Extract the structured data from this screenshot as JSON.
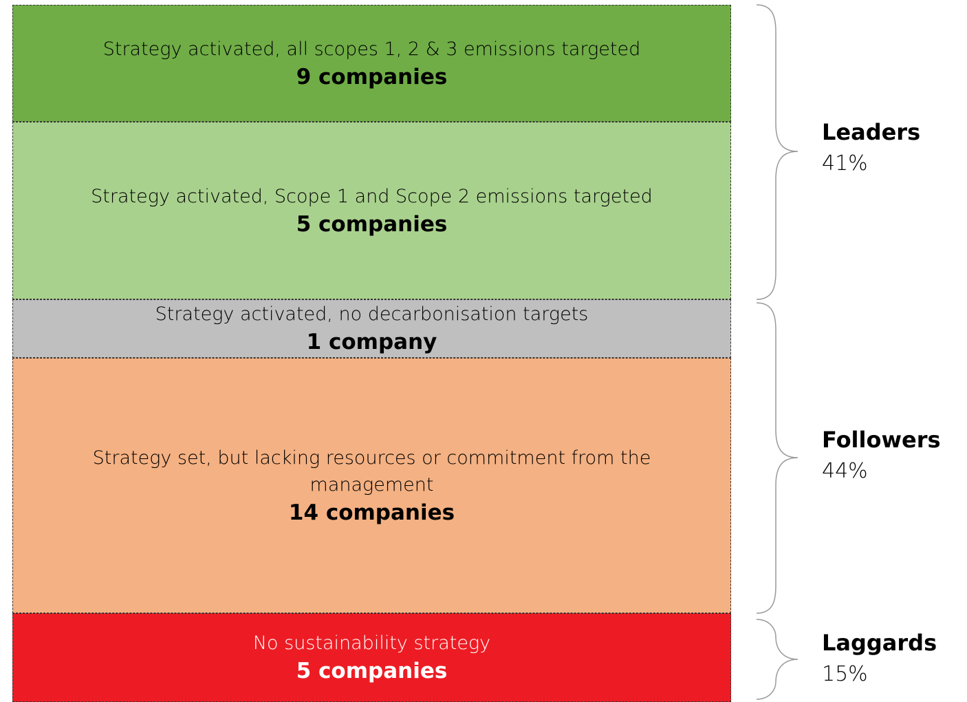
{
  "bands": [
    {
      "description": "Strategy activated, all scopes 1, 2 & 3 emissions targeted",
      "count": "9 companies",
      "color": "#70ad47",
      "text_color": "#000000"
    },
    {
      "description": "Strategy activated, Scope 1 and Scope 2 emissions targeted",
      "count": "5 companies",
      "color": "#a9d18e",
      "text_color": "#000000"
    },
    {
      "description": "Strategy activated, no decarbonisation targets",
      "count": "1 company",
      "color": "#bfbfbf",
      "text_color": "#000000"
    },
    {
      "description": "Strategy set, but lacking resources or commitment from the management",
      "count": "14 companies",
      "color": "#f4b183",
      "text_color": "#000000"
    },
    {
      "description": "No sustainability strategy",
      "count": "5 companies",
      "color": "#ed1c24",
      "text_color": "#ffffff"
    }
  ],
  "groups": [
    {
      "name": "Leaders",
      "share": "41%"
    },
    {
      "name": "Followers",
      "share": "44%"
    },
    {
      "name": "Laggards",
      "share": "15%"
    }
  ]
}
